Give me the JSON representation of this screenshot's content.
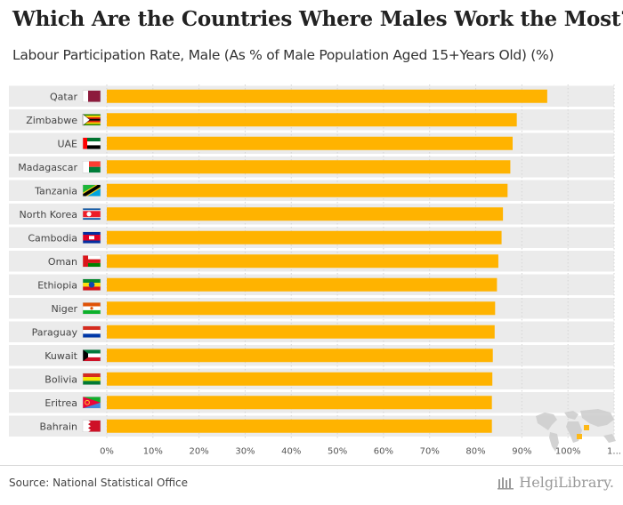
{
  "header": {
    "title": "Which Are the Countries Where Males Work the Most?",
    "subtitle": "Labour Participation Rate, Male (As % of Male Population Aged 15+Years Old) (%)"
  },
  "footer": {
    "source": "Source: National Statistical Office",
    "logo_text": "HelgiLibrary."
  },
  "colors": {
    "bar": "#FFB300",
    "row_band": "#EBEBEB",
    "grid": "#D5D5D5"
  },
  "chart_data": {
    "type": "bar",
    "orientation": "horizontal",
    "title": "Which Are the Countries Where Males Work the Most?",
    "subtitle": "Labour Participation Rate, Male (As % of Male Population Aged 15+Years Old) (%)",
    "categories": [
      "Qatar",
      "Zimbabwe",
      "UAE",
      "Madagascar",
      "Tanzania",
      "North Korea",
      "Cambodia",
      "Oman",
      "Ethiopia",
      "Niger",
      "Paraguay",
      "Kuwait",
      "Bolivia",
      "Eritrea",
      "Bahrain"
    ],
    "values": [
      95.5,
      88.9,
      88.0,
      87.5,
      86.9,
      85.9,
      85.6,
      84.9,
      84.6,
      84.2,
      84.1,
      83.7,
      83.6,
      83.5,
      83.5
    ],
    "tick_labels": [
      "0%",
      "10%",
      "20%",
      "30%",
      "40%",
      "50%",
      "60%",
      "70%",
      "80%",
      "90%",
      "100%",
      "1..."
    ],
    "xlim": [
      0,
      110
    ],
    "grid": true,
    "legend": "none",
    "xlabel": "",
    "ylabel": ""
  }
}
